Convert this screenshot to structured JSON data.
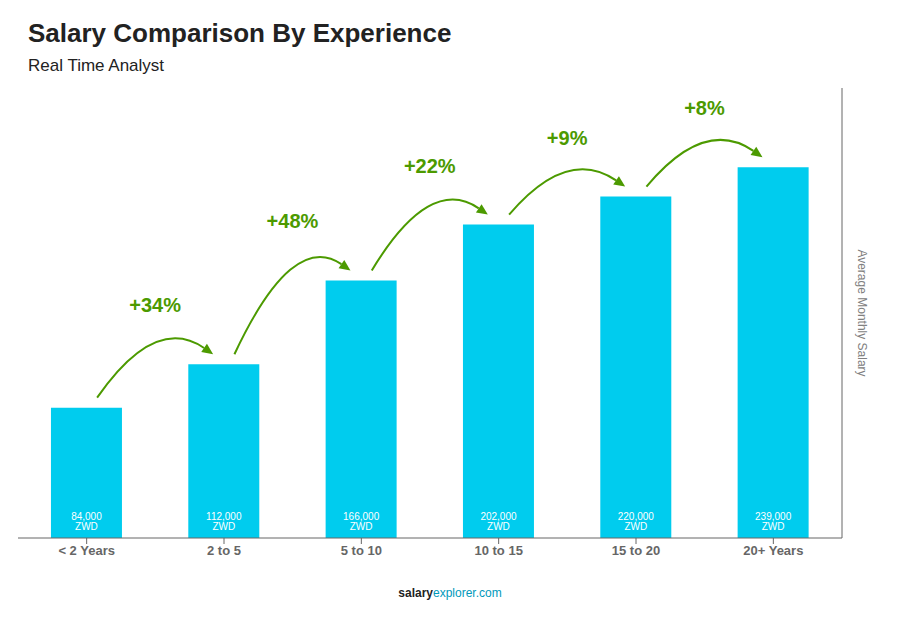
{
  "chart_data": {
    "type": "bar",
    "title": "Salary Comparison By Experience",
    "subtitle": "Real Time Analyst",
    "ylabel": "Average Monthly Salary",
    "footer": [
      "salary",
      "explorer.com"
    ],
    "categories": [
      "< 2 Years",
      "2 to 5",
      "5 to 10",
      "10 to 15",
      "15 to 20",
      "20+ Years"
    ],
    "values": [
      84000,
      112000,
      166000,
      202000,
      220000,
      239000
    ],
    "value_labels": [
      "84,000 ZWD",
      "112,000 ZWD",
      "166,000 ZWD",
      "202,000 ZWD",
      "220,000 ZWD",
      "239,000 ZWD"
    ],
    "data_labels": true,
    "annotations": [
      {
        "from": "< 2 Years",
        "to": "2 to 5",
        "text": "+34%"
      },
      {
        "from": "2 to 5",
        "to": "5 to 10",
        "text": "+48%"
      },
      {
        "from": "5 to 10",
        "to": "10 to 15",
        "text": "+22%"
      },
      {
        "from": "10 to 15",
        "to": "15 to 20",
        "text": "+9%"
      },
      {
        "from": "15 to 20",
        "to": "20+ Years",
        "text": "+8%"
      }
    ],
    "color": "#00ccee",
    "ylim": [
      0,
      290000
    ],
    "tick_labels": "x"
  }
}
